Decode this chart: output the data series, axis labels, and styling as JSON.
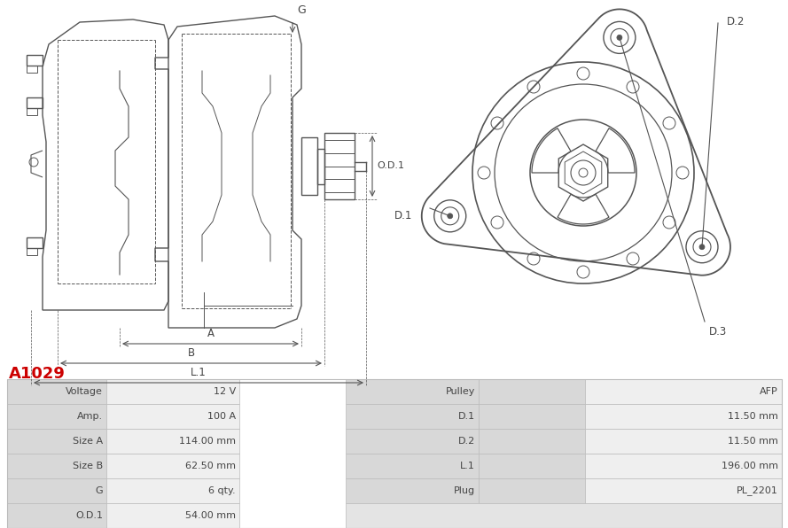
{
  "title": "A1029",
  "title_color": "#cc0000",
  "bg_color": "#ffffff",
  "table_data": [
    [
      "Voltage",
      "12 V",
      "Pulley",
      "AFP"
    ],
    [
      "Amp.",
      "100 A",
      "D.1",
      "11.50 mm"
    ],
    [
      "Size A",
      "114.00 mm",
      "D.2",
      "11.50 mm"
    ],
    [
      "Size B",
      "62.50 mm",
      "L.1",
      "196.00 mm"
    ],
    [
      "G",
      "6 qty.",
      "Plug",
      "PL_2201"
    ],
    [
      "O.D.1",
      "54.00 mm",
      "",
      ""
    ]
  ],
  "label_bg": "#d8d8d8",
  "value_bg": "#efefef",
  "empty_bg": "#e4e4e4",
  "line_color": "#bbbbbb",
  "text_color": "#444444",
  "draw_color": "#555555",
  "font_size": 8.0
}
